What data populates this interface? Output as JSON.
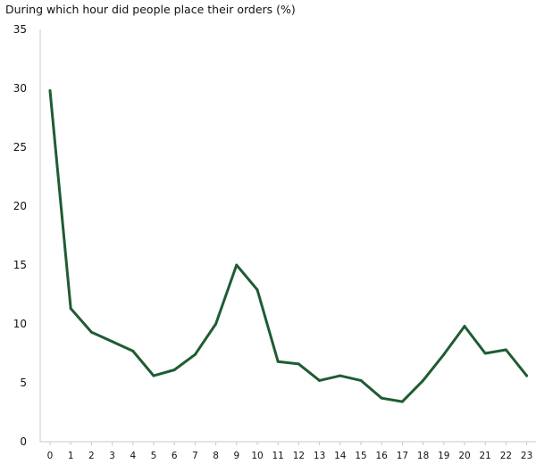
{
  "chart_data": {
    "type": "line",
    "title": "During which hour did people place their orders (%)",
    "xlabel": "",
    "ylabel": "",
    "categories": [
      "0",
      "1",
      "2",
      "3",
      "4",
      "5",
      "6",
      "7",
      "8",
      "9",
      "10",
      "11",
      "12",
      "13",
      "14",
      "15",
      "16",
      "17",
      "18",
      "19",
      "20",
      "21",
      "22",
      "23"
    ],
    "values": [
      29.8,
      11.3,
      9.3,
      8.5,
      7.7,
      5.6,
      6.1,
      7.4,
      10.0,
      15.0,
      12.9,
      6.8,
      6.6,
      5.2,
      5.6,
      5.2,
      3.7,
      3.4,
      5.2,
      7.4,
      9.8,
      7.5,
      7.8,
      5.6
    ],
    "yticks": [
      "0",
      "5",
      "10",
      "15",
      "20",
      "25",
      "30",
      "35"
    ],
    "ylim": [
      0,
      35
    ],
    "grid": false,
    "color": "#1e5c32"
  }
}
